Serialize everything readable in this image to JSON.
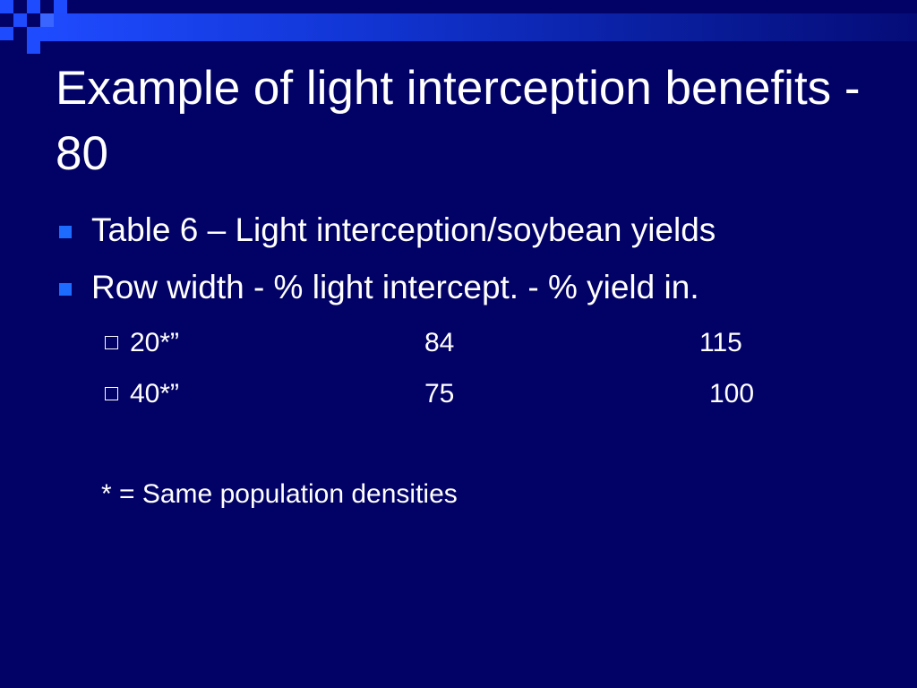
{
  "title": "Example of light interception benefits - 80",
  "bullets": [
    "Table 6 – Light interception/soybean yields",
    "Row width - % light intercept. - % yield in."
  ],
  "table": {
    "rows": [
      [
        "20*”",
        84,
        115
      ],
      [
        "40*”",
        75,
        100
      ]
    ]
  },
  "note": "* = Same population densities"
}
